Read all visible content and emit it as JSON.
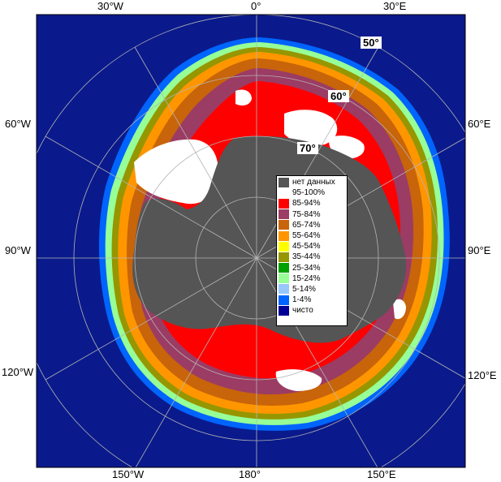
{
  "map": {
    "colors": {
      "ocean": "#0a1a8c",
      "land": "#555555",
      "water_open": "#0a1a8c"
    }
  },
  "labels": {
    "top": [
      "30°W",
      "0°",
      "30°E"
    ],
    "bottom": [
      "150°W",
      "180°",
      "150°E"
    ],
    "left": [
      "60°W",
      "90°W",
      "120°W"
    ],
    "right": [
      "60°E",
      "90°E",
      "120°E"
    ],
    "latitudes": [
      "50°",
      "60°",
      "70°"
    ]
  },
  "legend": {
    "items": [
      {
        "label": "нет данных",
        "color": "#555555"
      },
      {
        "label": "95-100%",
        "color": "#ffffff"
      },
      {
        "label": "85-94%",
        "color": "#ff0000"
      },
      {
        "label": "75-84%",
        "color": "#9b3c64"
      },
      {
        "label": "65-74%",
        "color": "#c8640a"
      },
      {
        "label": "55-64%",
        "color": "#ff9600"
      },
      {
        "label": "45-54%",
        "color": "#ffff00"
      },
      {
        "label": "35-44%",
        "color": "#969600"
      },
      {
        "label": "25-34%",
        "color": "#00a000"
      },
      {
        "label": "15-24%",
        "color": "#96ff96"
      },
      {
        "label": "5-14%",
        "color": "#96c8ff"
      },
      {
        "label": "1-4%",
        "color": "#0064ff"
      },
      {
        "label": "чисто",
        "color": "#000096"
      }
    ]
  }
}
